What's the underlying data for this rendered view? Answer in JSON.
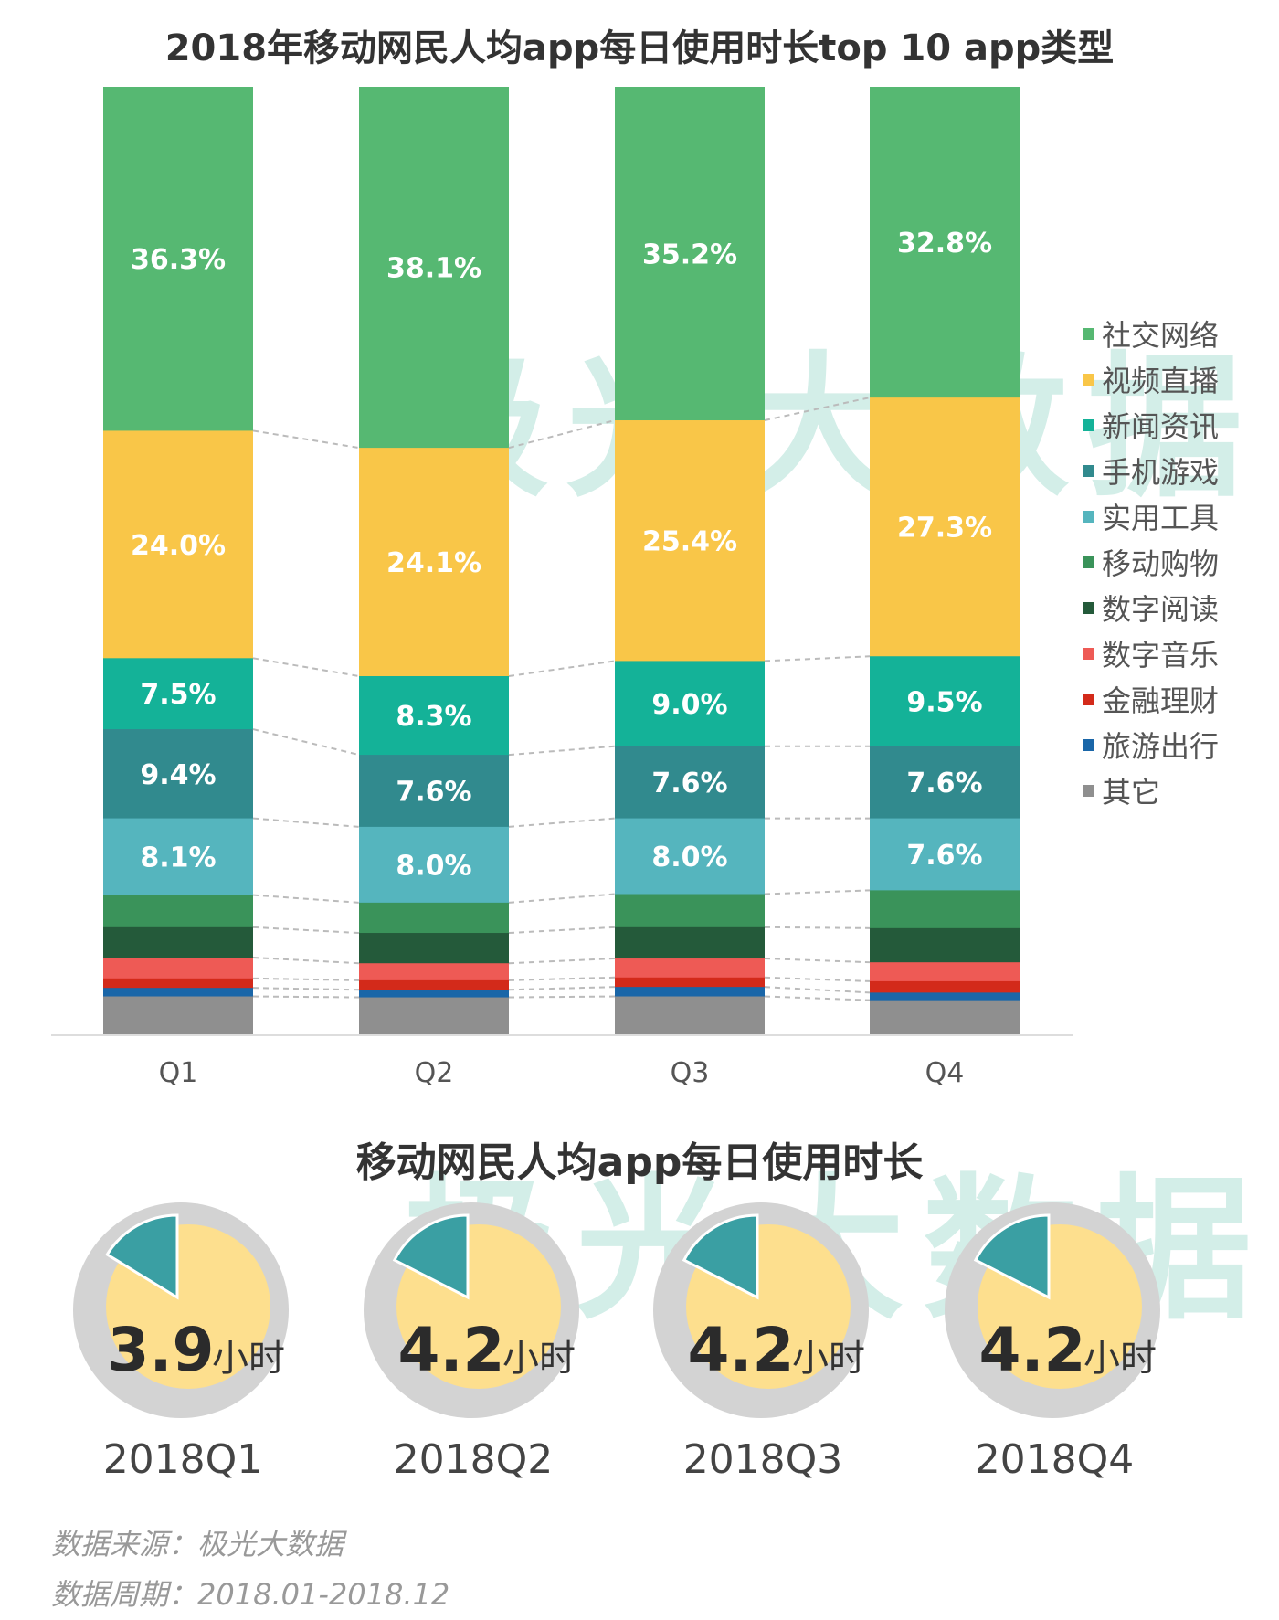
{
  "chart_data": {
    "type": "bar",
    "stacked": true,
    "percent": true,
    "title": "2018年移动网民人均app每日使用时长top 10 app类型",
    "categories": [
      "Q1",
      "Q2",
      "Q3",
      "Q4"
    ],
    "ylim": [
      0,
      100
    ],
    "grid": false,
    "legend_position": "right",
    "series": [
      {
        "name": "社交网络",
        "color": "#56b872",
        "values": [
          36.3,
          38.1,
          35.2,
          32.8
        ],
        "labeled": true
      },
      {
        "name": "视频直播",
        "color": "#f9c648",
        "values": [
          24.0,
          24.1,
          25.4,
          27.3
        ],
        "labeled": true
      },
      {
        "name": "新闻资讯",
        "color": "#14b298",
        "values": [
          7.5,
          8.3,
          9.0,
          9.5
        ],
        "labeled": true
      },
      {
        "name": "手机游戏",
        "color": "#318a8e",
        "values": [
          9.4,
          7.6,
          7.6,
          7.6
        ],
        "labeled": true
      },
      {
        "name": "实用工具",
        "color": "#55b5be",
        "values": [
          8.1,
          8.0,
          8.0,
          7.6
        ],
        "labeled": true
      },
      {
        "name": "移动购物",
        "color": "#3a935a",
        "values": [
          3.4,
          3.2,
          3.5,
          4.0
        ],
        "labeled": false
      },
      {
        "name": "数字阅读",
        "color": "#245a3a",
        "values": [
          3.2,
          3.2,
          3.3,
          3.6
        ],
        "labeled": false
      },
      {
        "name": "数字音乐",
        "color": "#ee5a55",
        "values": [
          2.2,
          1.8,
          2.0,
          2.0
        ],
        "labeled": false
      },
      {
        "name": "金融理财",
        "color": "#d32a1a",
        "values": [
          1.0,
          1.0,
          1.0,
          1.2
        ],
        "labeled": false
      },
      {
        "name": "旅游出行",
        "color": "#1a66a8",
        "values": [
          0.9,
          0.8,
          1.0,
          0.8
        ],
        "labeled": false
      },
      {
        "name": "其它",
        "color": "#8f8f8f",
        "values": [
          4.0,
          3.9,
          4.0,
          3.6
        ],
        "labeled": false
      }
    ],
    "labels": [
      [
        "36.3%",
        "38.1%",
        "35.2%",
        "32.8%"
      ],
      [
        "24.0%",
        "24.1%",
        "25.4%",
        "27.3%"
      ],
      [
        "7.5%",
        "8.3%",
        "9.0%",
        "9.5%"
      ],
      [
        "9.4%",
        "7.6%",
        "7.6%",
        "7.6%"
      ],
      [
        "8.1%",
        "8.0%",
        "8.0%",
        "7.6%"
      ]
    ]
  },
  "daily": {
    "title": "移动网民人均app每日使用时长",
    "unit": "小时",
    "items": [
      {
        "period": "2018Q1",
        "hours": 3.9,
        "label": "3.9"
      },
      {
        "period": "2018Q2",
        "hours": 4.2,
        "label": "4.2"
      },
      {
        "period": "2018Q3",
        "hours": 4.2,
        "label": "4.2"
      },
      {
        "period": "2018Q4",
        "hours": 4.2,
        "label": "4.2"
      }
    ],
    "colors": {
      "slice": "#3a9fa3",
      "rest": "#fddf8e",
      "ring": "#d3d3d3"
    }
  },
  "watermark": "极光大数据",
  "footer": {
    "source": "数据来源：极光大数据",
    "period": "数据周期：2018.01-2018.12"
  }
}
